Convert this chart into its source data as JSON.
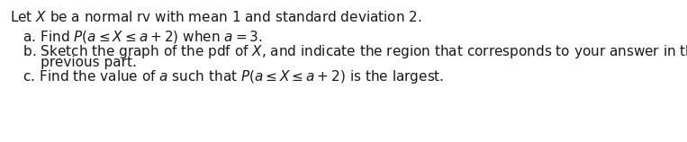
{
  "line1": "Let $X$ be a normal rv with mean 1 and standard deviation 2.",
  "line2": "   a. Find $P(a \\leq X \\leq a+2)$ when $a = 3$.",
  "line3": "   b. Sketch the graph of the pdf of $X$, and indicate the region that corresponds to your answer in the",
  "line4": "       previous part.",
  "line5": "   c. Find the value of $a$ such that $P(a \\leq X \\leq a+2)$ is the largest.",
  "bg_color": "#ffffff",
  "text_color": "#1a1a1a",
  "font_size": 11.0
}
